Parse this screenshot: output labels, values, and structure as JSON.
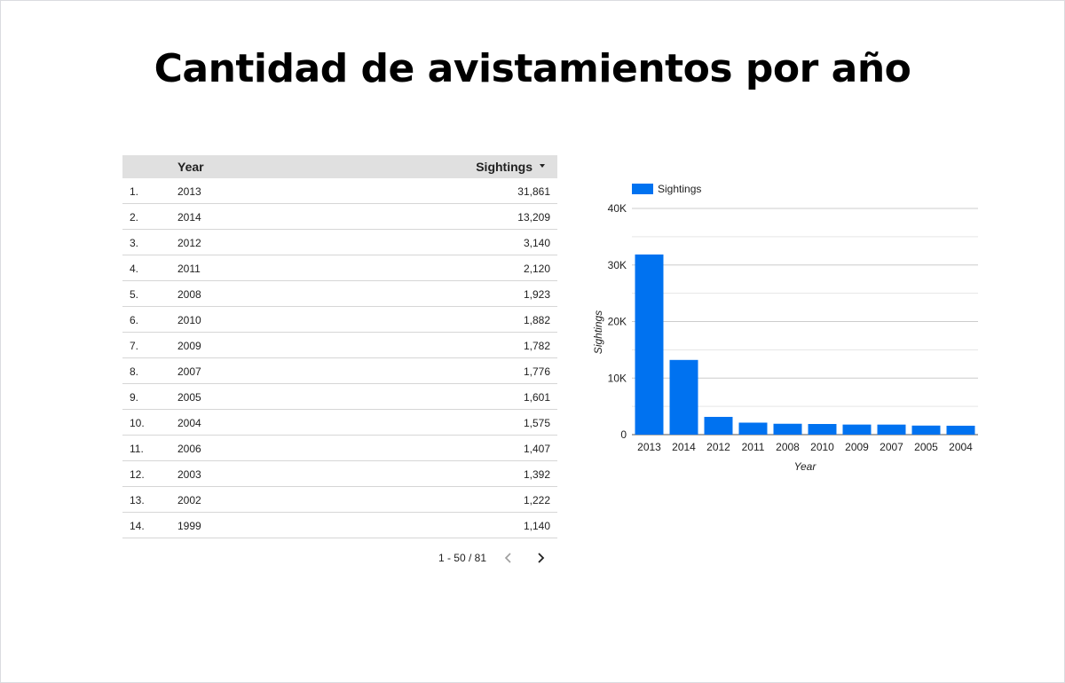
{
  "title": "Cantidad de avistamientos por año",
  "table": {
    "headers": {
      "index": "",
      "year": "Year",
      "sightings": "Sightings"
    },
    "rows": [
      {
        "index": "1.",
        "year": "2013",
        "sightings": "31,861"
      },
      {
        "index": "2.",
        "year": "2014",
        "sightings": "13,209"
      },
      {
        "index": "3.",
        "year": "2012",
        "sightings": "3,140"
      },
      {
        "index": "4.",
        "year": "2011",
        "sightings": "2,120"
      },
      {
        "index": "5.",
        "year": "2008",
        "sightings": "1,923"
      },
      {
        "index": "6.",
        "year": "2010",
        "sightings": "1,882"
      },
      {
        "index": "7.",
        "year": "2009",
        "sightings": "1,782"
      },
      {
        "index": "8.",
        "year": "2007",
        "sightings": "1,776"
      },
      {
        "index": "9.",
        "year": "2005",
        "sightings": "1,601"
      },
      {
        "index": "10.",
        "year": "2004",
        "sightings": "1,575"
      },
      {
        "index": "11.",
        "year": "2006",
        "sightings": "1,407"
      },
      {
        "index": "12.",
        "year": "2003",
        "sightings": "1,392"
      },
      {
        "index": "13.",
        "year": "2002",
        "sightings": "1,222"
      },
      {
        "index": "14.",
        "year": "1999",
        "sightings": "1,140"
      }
    ],
    "sort_icon": "caret-down-icon"
  },
  "pagination": {
    "range": "1 - 50 / 81",
    "prev_icon": "chevron-left-icon",
    "next_icon": "chevron-right-icon"
  },
  "chart_data": {
    "type": "bar",
    "categories": [
      "2013",
      "2014",
      "2012",
      "2011",
      "2008",
      "2010",
      "2009",
      "2007",
      "2005",
      "2004"
    ],
    "series": [
      {
        "name": "Sightings",
        "values": [
          31861,
          13209,
          3140,
          2120,
          1923,
          1882,
          1782,
          1776,
          1601,
          1575
        ],
        "color": "#0072f0"
      }
    ],
    "xlabel": "Year",
    "ylabel": "Sightings",
    "ylim": [
      0,
      40000
    ],
    "yticks": [
      0,
      10000,
      20000,
      30000,
      40000
    ],
    "ytick_labels": [
      "0",
      "10K",
      "20K",
      "30K",
      "40K"
    ],
    "grid": true,
    "legend": "top-left"
  },
  "colors": {
    "bar": "#0072f0",
    "header_bg": "#e0e0e0",
    "grid": "#cccccc"
  }
}
